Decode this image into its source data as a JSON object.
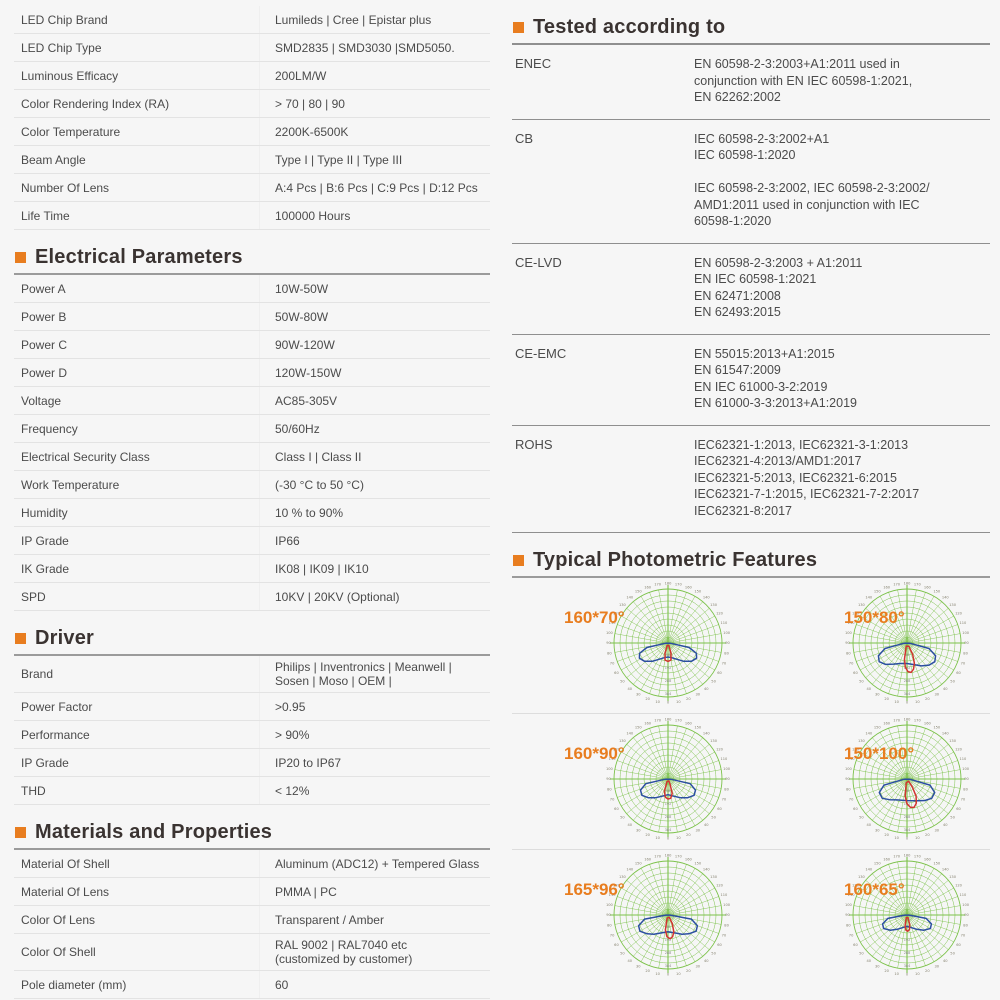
{
  "colors": {
    "accent": "#e87d1f",
    "heading": "#3a3331",
    "text": "#4b4b4b",
    "grid_green": "#7cc24a",
    "curve_blue": "#2b4ea0",
    "curve_red": "#d23430",
    "tick": "#85826f",
    "radial_tick": "#8a8a8a"
  },
  "left": {
    "general": {
      "rows": [
        {
          "label": "LED Chip Brand",
          "value": "Lumileds | Cree | Epistar plus"
        },
        {
          "label": "LED Chip Type",
          "value": "SMD2835 | SMD3030 |SMD5050."
        },
        {
          "label": "Luminous Efficacy",
          "value": "200LM/W"
        },
        {
          "label": "Color Rendering Index (RA)",
          "value": "> 70  |  80  |  90"
        },
        {
          "label": "Color Temperature",
          "value": "2200K-6500K"
        },
        {
          "label": "Beam Angle",
          "value": "Type I  | Type II  | Type III"
        },
        {
          "label": "Number Of Lens",
          "value": "A:4 Pcs  |  B:6 Pcs  |  C:9 Pcs | D:12 Pcs"
        },
        {
          "label": "Life Time",
          "value": "100000 Hours"
        }
      ]
    },
    "electrical": {
      "title": "Electrical Parameters",
      "rows": [
        {
          "label": "Power A",
          "value": "10W-50W"
        },
        {
          "label": "Power B",
          "value": "50W-80W"
        },
        {
          "label": "Power C",
          "value": "90W-120W"
        },
        {
          "label": "Power D",
          "value": "120W-150W"
        },
        {
          "label": "Voltage",
          "value": "AC85-305V"
        },
        {
          "label": "Frequency",
          "value": "50/60Hz"
        },
        {
          "label": "Electrical Security Class",
          "value": "Class I  |  Class II"
        },
        {
          "label": "Work Temperature",
          "value": "(-30 °C to 50 °C)"
        },
        {
          "label": "Humidity",
          "value": "10 % to 90%"
        },
        {
          "label": "IP Grade",
          "value": "IP66"
        },
        {
          "label": "IK Grade",
          "value": "IK08 | IK09 | IK10"
        },
        {
          "label": "SPD",
          "value": "10KV | 20KV   (Optional)"
        }
      ]
    },
    "driver": {
      "title": "Driver",
      "rows": [
        {
          "label": "Brand",
          "value": "Philips | Inventronics | Meanwell |\nSosen | Moso | OEM |"
        },
        {
          "label": "Power Factor",
          "value": ">0.95"
        },
        {
          "label": "Performance",
          "value": "> 90%"
        },
        {
          "label": "IP Grade",
          "value": "IP20 to IP67"
        },
        {
          "label": "THD",
          "value": "< 12%"
        }
      ]
    },
    "materials": {
      "title": "Materials and Properties",
      "rows": [
        {
          "label": "Material Of Shell",
          "value": "Aluminum (ADC12) + Tempered Glass"
        },
        {
          "label": "Material Of Lens",
          "value": "PMMA  |  PC"
        },
        {
          "label": "Color Of Lens",
          "value": "Transparent / Amber"
        },
        {
          "label": "Color Of Shell",
          "value": "RAL 9002 |  RAL7040 etc\n(customized by customer)"
        },
        {
          "label": "Pole diameter (mm)",
          "value": "60"
        }
      ]
    }
  },
  "right": {
    "tested": {
      "title": "Tested according to",
      "rows": [
        {
          "label": "ENEC",
          "lines": [
            "EN 60598-2-3:2003+A1:2011 used in",
            "conjunction with EN IEC 60598-1:2021,",
            "EN 62262:2002"
          ]
        },
        {
          "label": "CB",
          "lines": [
            "IEC 60598-2-3:2002+A1",
            "IEC 60598-1:2020",
            "",
            "IEC 60598-2-3:2002, IEC 60598-2-3:2002/",
            "AMD1:2011 used in conjunction with IEC",
            "60598-1:2020"
          ]
        },
        {
          "label": "CE-LVD",
          "lines": [
            "EN 60598-2-3:2003 + A1:2011",
            "EN IEC 60598-1:2021",
            "EN 62471:2008",
            "EN 62493:2015"
          ]
        },
        {
          "label": "CE-EMC",
          "lines": [
            "EN 55015:2013+A1:2015",
            "EN 61547:2009",
            "EN IEC 61000-3-2:2019",
            "EN 61000-3-3:2013+A1:2019"
          ]
        },
        {
          "label": "ROHS",
          "lines": [
            "IEC62321-1:2013, IEC62321-3-1:2013",
            "IEC62321-4:2013/AMD1:2017",
            "IEC62321-5:2013, IEC62321-6:2015",
            "IEC62321-7-1:2015, IEC62321-7-2:2017",
            "IEC62321-8:2017"
          ]
        }
      ]
    },
    "photometric": {
      "title": "Typical Photometric Features",
      "degree_labels": [
        0,
        10,
        20,
        30,
        40,
        50,
        60,
        70,
        80,
        90,
        100,
        110,
        120,
        130,
        140,
        150,
        160,
        170,
        180
      ],
      "radial_labels": [
        "96",
        "192",
        "288",
        "384"
      ],
      "diagrams": [
        {
          "label": "160*70°",
          "blue": [
            [
              -86,
              0.04
            ],
            [
              -78,
              0.4
            ],
            [
              -70,
              0.56
            ],
            [
              -62,
              0.6
            ],
            [
              -52,
              0.55
            ],
            [
              -40,
              0.44
            ],
            [
              -28,
              0.34
            ],
            [
              -14,
              0.28
            ],
            [
              0,
              0.26
            ],
            [
              14,
              0.28
            ],
            [
              28,
              0.34
            ],
            [
              40,
              0.44
            ],
            [
              52,
              0.55
            ],
            [
              62,
              0.6
            ],
            [
              70,
              0.56
            ],
            [
              78,
              0.4
            ],
            [
              86,
              0.04
            ]
          ],
          "red": [
            [
              -20,
              0.05
            ],
            [
              -16,
              0.2
            ],
            [
              -10,
              0.32
            ],
            [
              0,
              0.34
            ],
            [
              10,
              0.32
            ],
            [
              16,
              0.2
            ],
            [
              20,
              0.05
            ]
          ]
        },
        {
          "label": "150*80°",
          "blue": [
            [
              -85,
              0.05
            ],
            [
              -76,
              0.42
            ],
            [
              -66,
              0.58
            ],
            [
              -56,
              0.62
            ],
            [
              -45,
              0.56
            ],
            [
              -32,
              0.46
            ],
            [
              -18,
              0.4
            ],
            [
              0,
              0.38
            ],
            [
              18,
              0.42
            ],
            [
              32,
              0.5
            ],
            [
              45,
              0.58
            ],
            [
              56,
              0.62
            ],
            [
              66,
              0.58
            ],
            [
              76,
              0.42
            ],
            [
              85,
              0.05
            ]
          ],
          "red": [
            [
              -14,
              0.06
            ],
            [
              -9,
              0.3
            ],
            [
              -4,
              0.45
            ],
            [
              2,
              0.53
            ],
            [
              8,
              0.55
            ],
            [
              14,
              0.5
            ],
            [
              20,
              0.4
            ],
            [
              26,
              0.24
            ],
            [
              30,
              0.07
            ]
          ]
        },
        {
          "label": "160*90°",
          "blue": [
            [
              -86,
              0.05
            ],
            [
              -78,
              0.42
            ],
            [
              -68,
              0.55
            ],
            [
              -58,
              0.57
            ],
            [
              -46,
              0.5
            ],
            [
              -34,
              0.42
            ],
            [
              -20,
              0.34
            ],
            [
              0,
              0.29
            ],
            [
              20,
              0.34
            ],
            [
              34,
              0.42
            ],
            [
              46,
              0.5
            ],
            [
              58,
              0.57
            ],
            [
              68,
              0.55
            ],
            [
              78,
              0.42
            ],
            [
              86,
              0.05
            ]
          ],
          "red": [
            [
              -22,
              0.05
            ],
            [
              -16,
              0.24
            ],
            [
              -8,
              0.34
            ],
            [
              0,
              0.37
            ],
            [
              8,
              0.36
            ],
            [
              16,
              0.28
            ],
            [
              22,
              0.1
            ],
            [
              25,
              0.04
            ]
          ]
        },
        {
          "label": "150*100°",
          "blue": [
            [
              -85,
              0.05
            ],
            [
              -75,
              0.44
            ],
            [
              -64,
              0.57
            ],
            [
              -52,
              0.58
            ],
            [
              -40,
              0.5
            ],
            [
              -26,
              0.43
            ],
            [
              0,
              0.4
            ],
            [
              26,
              0.45
            ],
            [
              40,
              0.52
            ],
            [
              52,
              0.58
            ],
            [
              64,
              0.57
            ],
            [
              75,
              0.44
            ],
            [
              85,
              0.05
            ]
          ],
          "red": [
            [
              -12,
              0.07
            ],
            [
              -6,
              0.32
            ],
            [
              0,
              0.46
            ],
            [
              7,
              0.53
            ],
            [
              14,
              0.54
            ],
            [
              21,
              0.48
            ],
            [
              28,
              0.36
            ],
            [
              34,
              0.18
            ],
            [
              37,
              0.05
            ]
          ]
        },
        {
          "label": "165*96°",
          "blue": [
            [
              -88,
              0.04
            ],
            [
              -80,
              0.44
            ],
            [
              -70,
              0.58
            ],
            [
              -60,
              0.6
            ],
            [
              -48,
              0.52
            ],
            [
              -36,
              0.44
            ],
            [
              -22,
              0.36
            ],
            [
              0,
              0.31
            ],
            [
              22,
              0.36
            ],
            [
              36,
              0.44
            ],
            [
              48,
              0.52
            ],
            [
              60,
              0.6
            ],
            [
              70,
              0.58
            ],
            [
              80,
              0.44
            ],
            [
              88,
              0.04
            ]
          ],
          "red": [
            [
              -16,
              0.06
            ],
            [
              -10,
              0.28
            ],
            [
              -3,
              0.4
            ],
            [
              5,
              0.44
            ],
            [
              12,
              0.41
            ],
            [
              19,
              0.33
            ],
            [
              26,
              0.18
            ],
            [
              30,
              0.05
            ]
          ]
        },
        {
          "label": "160*65°",
          "blue": [
            [
              -88,
              0.04
            ],
            [
              -80,
              0.36
            ],
            [
              -70,
              0.48
            ],
            [
              -60,
              0.5
            ],
            [
              -48,
              0.42
            ],
            [
              -34,
              0.32
            ],
            [
              -20,
              0.25
            ],
            [
              0,
              0.21
            ],
            [
              20,
              0.25
            ],
            [
              34,
              0.32
            ],
            [
              48,
              0.42
            ],
            [
              60,
              0.5
            ],
            [
              70,
              0.48
            ],
            [
              80,
              0.36
            ],
            [
              88,
              0.04
            ]
          ],
          "red": [
            [
              -16,
              0.05
            ],
            [
              -10,
              0.2
            ],
            [
              -4,
              0.28
            ],
            [
              3,
              0.3
            ],
            [
              10,
              0.27
            ],
            [
              16,
              0.18
            ],
            [
              20,
              0.05
            ]
          ]
        }
      ]
    }
  }
}
